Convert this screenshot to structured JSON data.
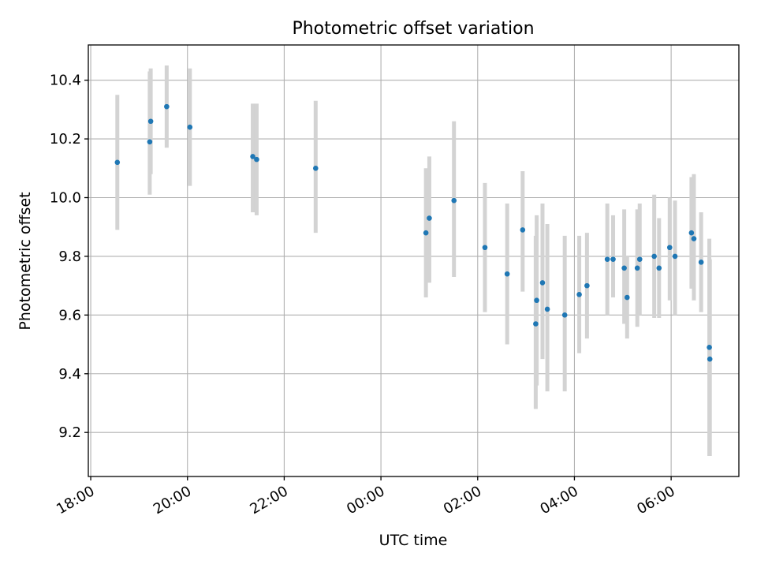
{
  "chart_data": {
    "type": "scatter",
    "title": "Photometric offset variation",
    "xlabel": "UTC time",
    "ylabel": "Photometric offset",
    "x_unit": "hours",
    "xlim": [
      17.95,
      31.4
    ],
    "ylim": [
      9.05,
      10.52
    ],
    "grid": true,
    "legend": "none",
    "colors": {
      "point": "#1f77b4",
      "errorbar": "#d3d3d3"
    },
    "x_ticks": [
      {
        "value": 18,
        "label": "18:00"
      },
      {
        "value": 20,
        "label": "20:00"
      },
      {
        "value": 22,
        "label": "22:00"
      },
      {
        "value": 24,
        "label": "00:00"
      },
      {
        "value": 26,
        "label": "02:00"
      },
      {
        "value": 28,
        "label": "04:00"
      },
      {
        "value": 30,
        "label": "06:00"
      }
    ],
    "y_ticks": [
      {
        "value": 9.2,
        "label": "9.2"
      },
      {
        "value": 9.4,
        "label": "9.4"
      },
      {
        "value": 9.6,
        "label": "9.6"
      },
      {
        "value": 9.8,
        "label": "9.8"
      },
      {
        "value": 10.0,
        "label": "10.0"
      },
      {
        "value": 10.2,
        "label": "10.2"
      },
      {
        "value": 10.4,
        "label": "10.4"
      }
    ],
    "points": [
      {
        "x": 18.55,
        "y": 10.12,
        "lo": 9.89,
        "hi": 10.35
      },
      {
        "x": 19.22,
        "y": 10.19,
        "lo": 10.01,
        "hi": 10.43
      },
      {
        "x": 19.24,
        "y": 10.26,
        "lo": 10.08,
        "hi": 10.44
      },
      {
        "x": 19.57,
        "y": 10.31,
        "lo": 10.17,
        "hi": 10.45
      },
      {
        "x": 20.05,
        "y": 10.24,
        "lo": 10.04,
        "hi": 10.44
      },
      {
        "x": 21.35,
        "y": 10.14,
        "lo": 9.95,
        "hi": 10.32
      },
      {
        "x": 21.43,
        "y": 10.13,
        "lo": 9.94,
        "hi": 10.32
      },
      {
        "x": 22.65,
        "y": 10.1,
        "lo": 9.88,
        "hi": 10.33
      },
      {
        "x": 24.93,
        "y": 9.88,
        "lo": 9.66,
        "hi": 10.1
      },
      {
        "x": 25.0,
        "y": 9.93,
        "lo": 9.71,
        "hi": 10.14
      },
      {
        "x": 25.51,
        "y": 9.99,
        "lo": 9.73,
        "hi": 10.26
      },
      {
        "x": 26.93,
        "y": 9.89,
        "lo": 9.68,
        "hi": 10.09
      },
      {
        "x": 26.15,
        "y": 9.83,
        "lo": 9.61,
        "hi": 10.05
      },
      {
        "x": 26.61,
        "y": 9.74,
        "lo": 9.5,
        "hi": 9.98
      },
      {
        "x": 27.2,
        "y": 9.57,
        "lo": 9.28,
        "hi": 9.87
      },
      {
        "x": 27.22,
        "y": 9.65,
        "lo": 9.36,
        "hi": 9.94
      },
      {
        "x": 27.34,
        "y": 9.71,
        "lo": 9.45,
        "hi": 9.98
      },
      {
        "x": 27.44,
        "y": 9.62,
        "lo": 9.34,
        "hi": 9.91
      },
      {
        "x": 27.8,
        "y": 9.6,
        "lo": 9.34,
        "hi": 9.87
      },
      {
        "x": 28.1,
        "y": 9.67,
        "lo": 9.47,
        "hi": 9.87
      },
      {
        "x": 28.26,
        "y": 9.7,
        "lo": 9.52,
        "hi": 9.88
      },
      {
        "x": 28.68,
        "y": 9.79,
        "lo": 9.6,
        "hi": 9.98
      },
      {
        "x": 28.8,
        "y": 9.79,
        "lo": 9.66,
        "hi": 9.94
      },
      {
        "x": 29.03,
        "y": 9.76,
        "lo": 9.57,
        "hi": 9.96
      },
      {
        "x": 29.09,
        "y": 9.66,
        "lo": 9.52,
        "hi": 9.8
      },
      {
        "x": 29.3,
        "y": 9.76,
        "lo": 9.56,
        "hi": 9.96
      },
      {
        "x": 29.35,
        "y": 9.79,
        "lo": 9.6,
        "hi": 9.98
      },
      {
        "x": 29.65,
        "y": 9.8,
        "lo": 9.59,
        "hi": 10.01
      },
      {
        "x": 29.75,
        "y": 9.76,
        "lo": 9.59,
        "hi": 9.93
      },
      {
        "x": 29.97,
        "y": 9.83,
        "lo": 9.65,
        "hi": 10.0
      },
      {
        "x": 30.08,
        "y": 9.8,
        "lo": 9.6,
        "hi": 9.99
      },
      {
        "x": 30.42,
        "y": 9.88,
        "lo": 9.69,
        "hi": 10.07
      },
      {
        "x": 30.47,
        "y": 9.86,
        "lo": 9.65,
        "hi": 10.08
      },
      {
        "x": 30.62,
        "y": 9.78,
        "lo": 9.61,
        "hi": 9.95
      },
      {
        "x": 30.79,
        "y": 9.49,
        "lo": 9.12,
        "hi": 9.86
      },
      {
        "x": 30.8,
        "y": 9.45,
        "lo": 9.12,
        "hi": 9.79
      }
    ]
  }
}
